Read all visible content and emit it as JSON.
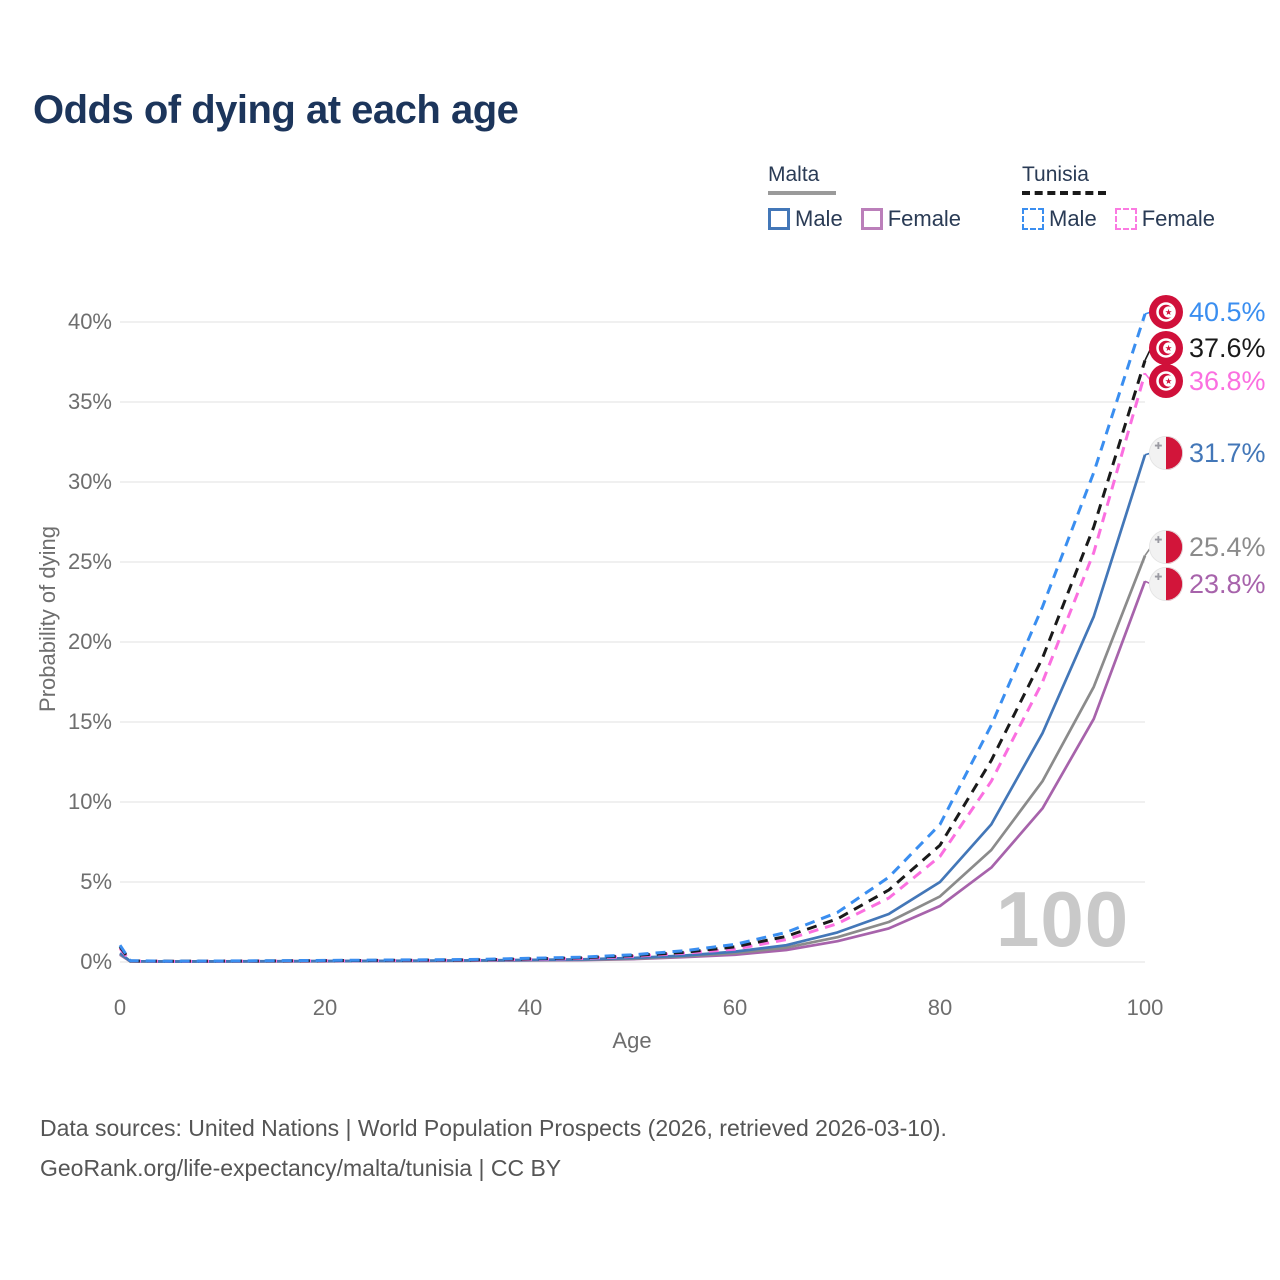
{
  "title": "Odds of dying at each age",
  "legend": {
    "groups": [
      {
        "label": "Malta",
        "line_style": "solid",
        "rule_color": "#9a9a9a",
        "items": [
          {
            "label": "Male",
            "color": "#4377b8"
          },
          {
            "label": "Female",
            "color": "#bb7fba"
          }
        ]
      },
      {
        "label": "Tunisia",
        "line_style": "dashed",
        "rule_color": "#1a1a1a",
        "items": [
          {
            "label": "Male",
            "color": "#3a8ef0"
          },
          {
            "label": "Female",
            "color": "#fb7ae1"
          }
        ]
      }
    ]
  },
  "chart_data": {
    "type": "line",
    "title": "Odds of dying at each age",
    "xlabel": "Age",
    "ylabel": "Probability of dying",
    "xlim": [
      0,
      100
    ],
    "ylim": [
      0,
      40
    ],
    "grid": true,
    "legend_position": "top-right",
    "watermark": "100",
    "xticks": [
      "0",
      "20",
      "40",
      "60",
      "80",
      "100"
    ],
    "xtick_values": [
      0,
      20,
      40,
      60,
      80,
      100
    ],
    "ytick_labels": [
      "40%",
      "35%",
      "30%",
      "25%",
      "20%",
      "15%",
      "10%",
      "5%",
      "0%"
    ],
    "ytick_values": [
      40,
      35,
      30,
      25,
      20,
      15,
      10,
      5,
      0
    ],
    "x_unit": "age (years)",
    "y_unit": "probability of dying (%)",
    "series": [
      {
        "name": "Malta Female",
        "country": "Malta",
        "sex": "Female",
        "color": "#a763ab",
        "dash": false,
        "end_value": 23.8,
        "end_label": "23.8%",
        "points": [
          [
            0,
            0.45
          ],
          [
            1,
            0.04
          ],
          [
            5,
            0.02
          ],
          [
            15,
            0.04
          ],
          [
            25,
            0.05
          ],
          [
            35,
            0.08
          ],
          [
            45,
            0.12
          ],
          [
            50,
            0.18
          ],
          [
            55,
            0.3
          ],
          [
            60,
            0.45
          ],
          [
            65,
            0.75
          ],
          [
            70,
            1.3
          ],
          [
            75,
            2.1
          ],
          [
            80,
            3.5
          ],
          [
            85,
            5.9
          ],
          [
            90,
            9.6
          ],
          [
            95,
            15.2
          ],
          [
            100,
            23.8
          ]
        ]
      },
      {
        "name": "Malta Total",
        "country": "Malta",
        "sex": "Both",
        "color": "#8b8b8b",
        "dash": false,
        "end_value": 25.4,
        "end_label": "25.4%",
        "points": [
          [
            0,
            0.5
          ],
          [
            1,
            0.04
          ],
          [
            5,
            0.03
          ],
          [
            15,
            0.04
          ],
          [
            25,
            0.06
          ],
          [
            35,
            0.09
          ],
          [
            45,
            0.14
          ],
          [
            50,
            0.2
          ],
          [
            55,
            0.35
          ],
          [
            60,
            0.55
          ],
          [
            65,
            0.9
          ],
          [
            70,
            1.55
          ],
          [
            75,
            2.5
          ],
          [
            80,
            4.1
          ],
          [
            85,
            7.0
          ],
          [
            90,
            11.3
          ],
          [
            95,
            17.2
          ],
          [
            100,
            25.4
          ]
        ]
      },
      {
        "name": "Malta Male",
        "country": "Malta",
        "sex": "Male",
        "color": "#4377b8",
        "dash": false,
        "end_value": 31.7,
        "end_label": "31.7%",
        "points": [
          [
            0,
            0.55
          ],
          [
            1,
            0.05
          ],
          [
            5,
            0.03
          ],
          [
            15,
            0.05
          ],
          [
            25,
            0.07
          ],
          [
            35,
            0.1
          ],
          [
            45,
            0.16
          ],
          [
            50,
            0.25
          ],
          [
            55,
            0.4
          ],
          [
            60,
            0.65
          ],
          [
            65,
            1.05
          ],
          [
            70,
            1.85
          ],
          [
            75,
            3.0
          ],
          [
            80,
            5.0
          ],
          [
            85,
            8.6
          ],
          [
            90,
            14.3
          ],
          [
            95,
            21.6
          ],
          [
            100,
            31.7
          ]
        ]
      },
      {
        "name": "Tunisia Female",
        "country": "Tunisia",
        "sex": "Female",
        "color": "#fb6fe0",
        "dash": true,
        "end_value": 36.8,
        "end_label": "36.8%",
        "points": [
          [
            0,
            0.85
          ],
          [
            1,
            0.06
          ],
          [
            5,
            0.04
          ],
          [
            15,
            0.06
          ],
          [
            25,
            0.09
          ],
          [
            35,
            0.12
          ],
          [
            45,
            0.22
          ],
          [
            50,
            0.35
          ],
          [
            55,
            0.55
          ],
          [
            60,
            0.8
          ],
          [
            65,
            1.4
          ],
          [
            70,
            2.4
          ],
          [
            75,
            4.0
          ],
          [
            80,
            6.6
          ],
          [
            85,
            11.3
          ],
          [
            90,
            17.5
          ],
          [
            95,
            25.6
          ],
          [
            100,
            36.8
          ]
        ]
      },
      {
        "name": "Tunisia Total",
        "country": "Tunisia",
        "sex": "Both",
        "color": "#1a1a1a",
        "dash": true,
        "end_value": 37.6,
        "end_label": "37.6%",
        "points": [
          [
            0,
            0.95
          ],
          [
            1,
            0.07
          ],
          [
            5,
            0.05
          ],
          [
            15,
            0.07
          ],
          [
            25,
            0.1
          ],
          [
            35,
            0.14
          ],
          [
            45,
            0.26
          ],
          [
            50,
            0.4
          ],
          [
            55,
            0.6
          ],
          [
            60,
            0.95
          ],
          [
            65,
            1.6
          ],
          [
            70,
            2.7
          ],
          [
            75,
            4.5
          ],
          [
            80,
            7.3
          ],
          [
            85,
            12.6
          ],
          [
            90,
            19.0
          ],
          [
            95,
            27.2
          ],
          [
            100,
            37.6
          ]
        ]
      },
      {
        "name": "Tunisia Male",
        "country": "Tunisia",
        "sex": "Male",
        "color": "#3a8ef0",
        "dash": true,
        "end_value": 40.5,
        "end_label": "40.5%",
        "points": [
          [
            0,
            1.05
          ],
          [
            1,
            0.08
          ],
          [
            5,
            0.05
          ],
          [
            15,
            0.08
          ],
          [
            25,
            0.12
          ],
          [
            35,
            0.16
          ],
          [
            45,
            0.3
          ],
          [
            50,
            0.45
          ],
          [
            55,
            0.7
          ],
          [
            60,
            1.1
          ],
          [
            65,
            1.85
          ],
          [
            70,
            3.1
          ],
          [
            75,
            5.3
          ],
          [
            80,
            8.6
          ],
          [
            85,
            14.8
          ],
          [
            90,
            22.2
          ],
          [
            95,
            30.6
          ],
          [
            100,
            40.5
          ]
        ]
      }
    ]
  },
  "end_labels": [
    {
      "value": "40.5%",
      "flag": "tunisia",
      "color": "#3a8ef0",
      "series": "Tunisia Male"
    },
    {
      "value": "37.6%",
      "flag": "tunisia",
      "color": "#1a1a1a",
      "series": "Tunisia Total"
    },
    {
      "value": "36.8%",
      "flag": "tunisia",
      "color": "#fb6fe0",
      "series": "Tunisia Female"
    },
    {
      "value": "31.7%",
      "flag": "malta",
      "color": "#4377b8",
      "series": "Malta Male"
    },
    {
      "value": "25.4%",
      "flag": "malta",
      "color": "#8b8b8b",
      "series": "Malta Total"
    },
    {
      "value": "23.8%",
      "flag": "malta",
      "color": "#a763ab",
      "series": "Malta Female"
    }
  ],
  "footer": {
    "line1": "Data sources: United Nations | World Population Prospects (2026, retrieved 2026-03-10).",
    "line2": "GeoRank.org/life-expectancy/malta/tunisia | CC BY"
  },
  "colors": {
    "title": "#1c355b",
    "axis_text": "#6e6e6e",
    "gridline": "#ececec",
    "watermark": "#c9c9c9",
    "tunisia_flag_red": "#d0103a",
    "malta_flag_red": "#d2153a"
  }
}
